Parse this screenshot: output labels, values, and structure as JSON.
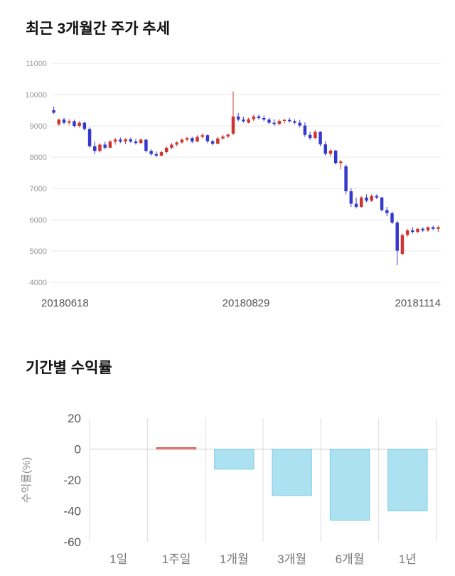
{
  "sections": {
    "price_trend": {
      "title": "최근 3개월간 주가 추세"
    },
    "returns": {
      "title": "기간별 수익률"
    }
  },
  "chart_data": [
    {
      "type": "candlestick",
      "title": "최근 3개월간 주가 추세",
      "ylim": [
        4000,
        11000
      ],
      "yticks": [
        4000,
        5000,
        6000,
        7000,
        8000,
        9000,
        10000,
        11000
      ],
      "xtick_labels": [
        "20180618",
        "20180829",
        "20181114"
      ],
      "up_color": "#cc3532",
      "down_color": "#3438cc",
      "grid": true,
      "candles": [
        [
          9500,
          9620,
          9380,
          9420
        ],
        [
          9050,
          9230,
          9000,
          9200
        ],
        [
          9200,
          9260,
          9050,
          9100
        ],
        [
          9100,
          9210,
          9020,
          9150
        ],
        [
          9150,
          9200,
          8950,
          9000
        ],
        [
          9000,
          9160,
          8950,
          9100
        ],
        [
          9100,
          9130,
          8850,
          8900
        ],
        [
          8900,
          8950,
          8300,
          8350
        ],
        [
          8350,
          8500,
          8100,
          8200
        ],
        [
          8200,
          8450,
          8150,
          8400
        ],
        [
          8400,
          8500,
          8250,
          8300
        ],
        [
          8300,
          8550,
          8280,
          8500
        ],
        [
          8500,
          8620,
          8400,
          8560
        ],
        [
          8560,
          8630,
          8450,
          8500
        ],
        [
          8500,
          8610,
          8420,
          8570
        ],
        [
          8570,
          8620,
          8460,
          8500
        ],
        [
          8500,
          8580,
          8400,
          8450
        ],
        [
          8450,
          8600,
          8420,
          8560
        ],
        [
          8560,
          8580,
          8150,
          8200
        ],
        [
          8200,
          8260,
          8050,
          8100
        ],
        [
          8100,
          8180,
          8000,
          8050
        ],
        [
          8050,
          8210,
          8020,
          8160
        ],
        [
          8160,
          8350,
          8110,
          8300
        ],
        [
          8300,
          8450,
          8250,
          8400
        ],
        [
          8400,
          8510,
          8350,
          8470
        ],
        [
          8470,
          8600,
          8430,
          8560
        ],
        [
          8560,
          8660,
          8500,
          8610
        ],
        [
          8610,
          8650,
          8450,
          8500
        ],
        [
          8500,
          8700,
          8480,
          8650
        ],
        [
          8650,
          8760,
          8600,
          8700
        ],
        [
          8700,
          8730,
          8450,
          8510
        ],
        [
          8510,
          8560,
          8380,
          8430
        ],
        [
          8430,
          8650,
          8410,
          8600
        ],
        [
          8600,
          8710,
          8550,
          8660
        ],
        [
          8660,
          8760,
          8610,
          8720
        ],
        [
          8750,
          10100,
          8700,
          9300
        ],
        [
          9300,
          9410,
          9150,
          9200
        ],
        [
          9200,
          9290,
          9100,
          9150
        ],
        [
          9100,
          9260,
          9080,
          9210
        ],
        [
          9210,
          9360,
          9160,
          9300
        ],
        [
          9300,
          9360,
          9200,
          9250
        ],
        [
          9250,
          9330,
          9150,
          9200
        ],
        [
          9200,
          9260,
          9050,
          9100
        ],
        [
          9100,
          9210,
          9000,
          9060
        ],
        [
          9060,
          9210,
          9020,
          9160
        ],
        [
          9160,
          9230,
          9080,
          9190
        ],
        [
          9190,
          9260,
          9100,
          9150
        ],
        [
          9150,
          9210,
          9050,
          9100
        ],
        [
          9100,
          9190,
          8950,
          9010
        ],
        [
          9010,
          9110,
          8650,
          8710
        ],
        [
          8710,
          8810,
          8550,
          8610
        ],
        [
          8610,
          8860,
          8580,
          8810
        ],
        [
          8810,
          8830,
          8350,
          8410
        ],
        [
          8410,
          8510,
          8050,
          8110
        ],
        [
          8110,
          8260,
          8010,
          8210
        ],
        [
          8210,
          8230,
          7760,
          7810
        ],
        [
          7810,
          7910,
          7610,
          7860
        ],
        [
          7710,
          7760,
          6810,
          6910
        ],
        [
          6910,
          7010,
          6410,
          6510
        ],
        [
          6510,
          6710,
          6360,
          6410
        ],
        [
          6410,
          6760,
          6390,
          6710
        ],
        [
          6710,
          6810,
          6560,
          6610
        ],
        [
          6610,
          6810,
          6570,
          6760
        ],
        [
          6760,
          6810,
          6660,
          6710
        ],
        [
          6710,
          6730,
          6260,
          6310
        ],
        [
          6310,
          6410,
          6110,
          6210
        ],
        [
          6210,
          6260,
          5860,
          5910
        ],
        [
          5910,
          5960,
          4550,
          5010
        ],
        [
          4910,
          5560,
          4860,
          5510
        ],
        [
          5510,
          5710,
          5460,
          5660
        ],
        [
          5660,
          5760,
          5560,
          5610
        ],
        [
          5610,
          5730,
          5570,
          5710
        ],
        [
          5710,
          5760,
          5610,
          5660
        ],
        [
          5660,
          5790,
          5610,
          5760
        ],
        [
          5760,
          5810,
          5660,
          5710
        ],
        [
          5710,
          5810,
          5610,
          5760
        ]
      ]
    },
    {
      "type": "bar",
      "title": "기간별 수익률",
      "ylabel": "수익률(%)",
      "categories": [
        "1일",
        "1주일",
        "1개월",
        "3개월",
        "6개월",
        "1년"
      ],
      "values": [
        0,
        0.9,
        -13,
        -30,
        -46,
        -40
      ],
      "ylim": [
        -60,
        20
      ],
      "yticks": [
        20,
        0,
        -20,
        -40,
        -60
      ],
      "grid": true,
      "positive_color": "#e88a86",
      "positive_border": "#cc4a44",
      "negative_color": "#abe1f1",
      "negative_border": "#7fcde6"
    }
  ]
}
